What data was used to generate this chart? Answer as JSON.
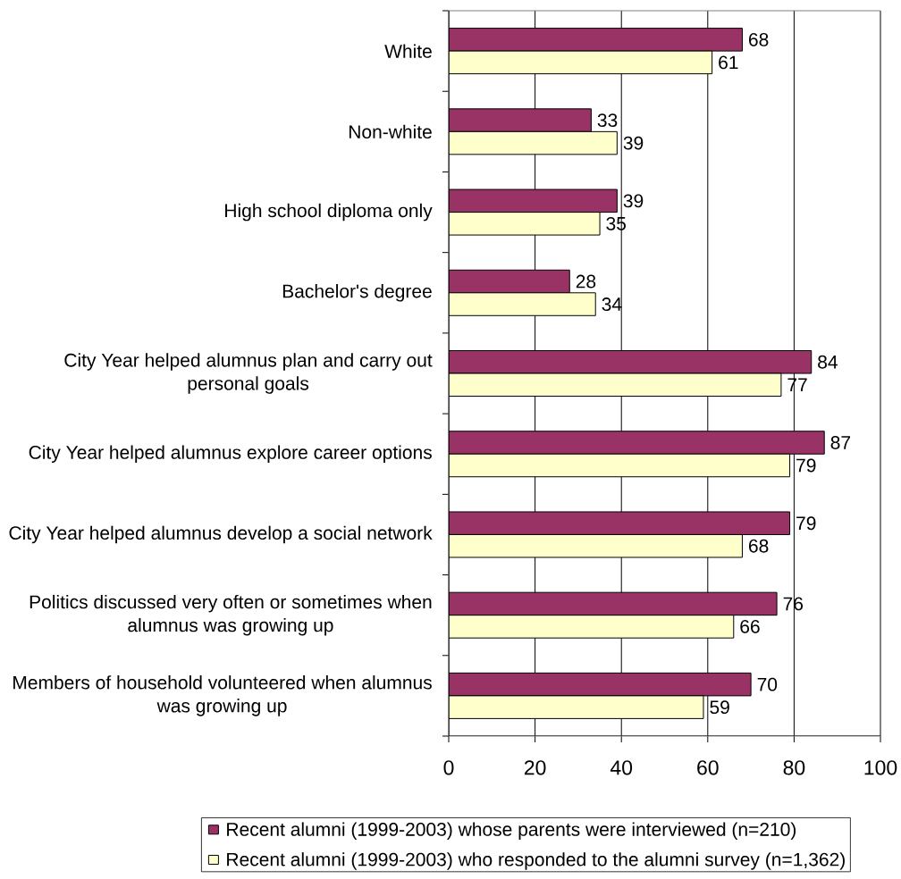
{
  "chart_data": {
    "type": "bar",
    "orientation": "horizontal",
    "categories": [
      "White",
      "Non-white",
      "High school diploma only",
      "Bachelor's degree",
      "City Year helped alumnus plan and carry out personal goals",
      "City Year helped alumnus explore career options",
      "City Year helped alumnus develop a social network",
      "Politics discussed very often or sometimes when alumnus was growing up",
      "Members of household volunteered when alumnus was growing up"
    ],
    "series": [
      {
        "name": "Recent alumni (1999-2003) whose parents were interviewed (n=210)",
        "color": "#993366",
        "values": [
          68,
          33,
          39,
          28,
          84,
          87,
          79,
          76,
          70
        ]
      },
      {
        "name": "Recent alumni (1999-2003) who responded to the alumni survey (n=1,362)",
        "color": "#ffffcc",
        "values": [
          61,
          39,
          35,
          34,
          77,
          79,
          68,
          66,
          59
        ]
      }
    ],
    "xlim": [
      0,
      100
    ],
    "xticks": [
      0,
      20,
      40,
      60,
      80,
      100
    ],
    "grid": "x",
    "legend": "bottom",
    "data_labels": true
  }
}
